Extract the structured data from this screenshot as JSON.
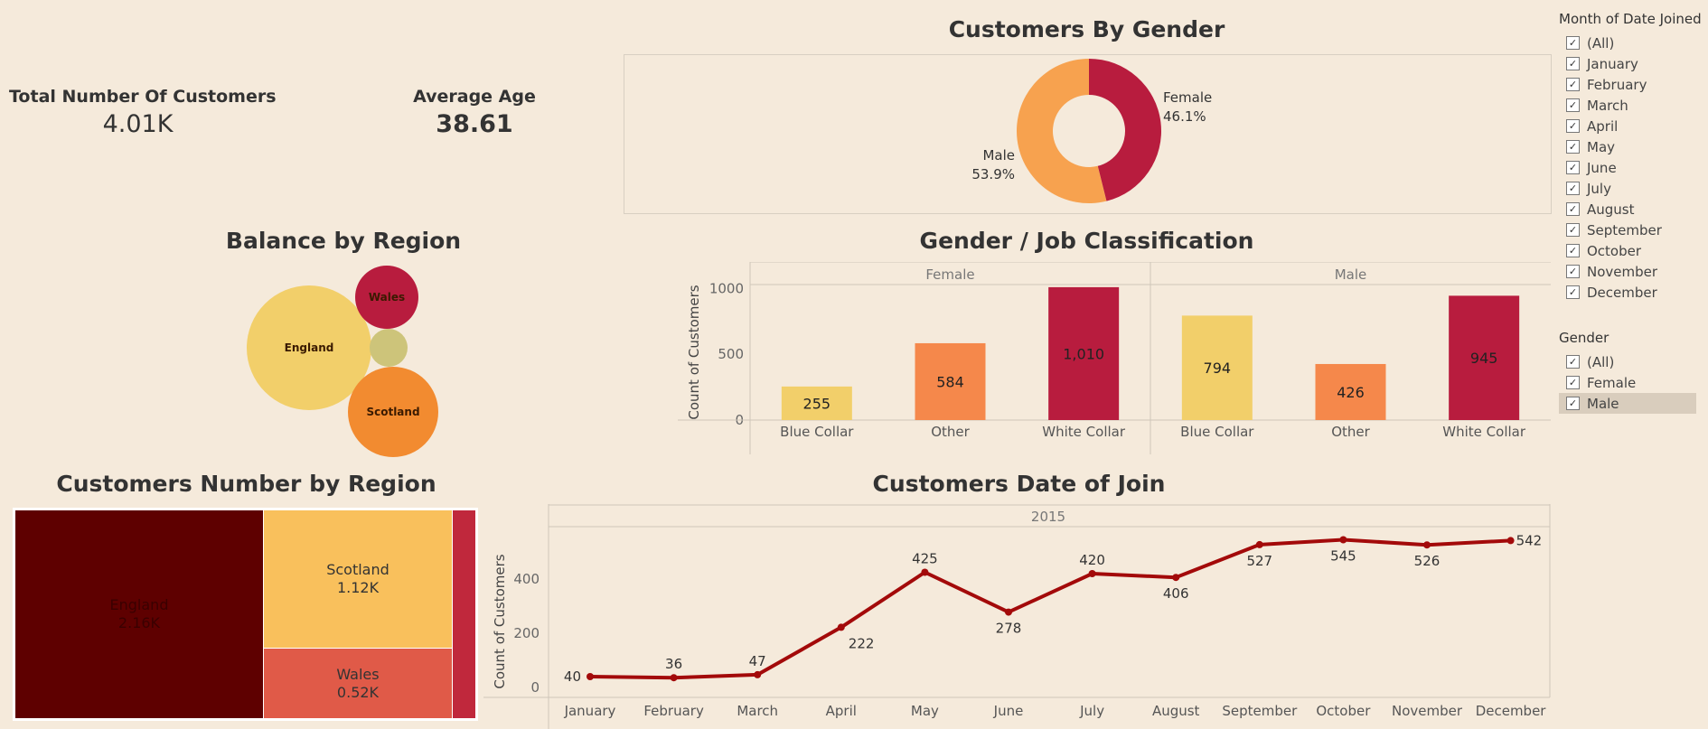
{
  "kpis": {
    "total_customers": {
      "label": "Total Number Of Customers",
      "value": "4.01K"
    },
    "average_age": {
      "label": "Average Age",
      "value": "38.61"
    }
  },
  "titles": {
    "gender": "Customers By Gender",
    "balance": "Balance by Region",
    "job": "Gender / Job Classification",
    "region_count": "Customers Number by Region",
    "date_join": "Customers Date of Join"
  },
  "colors": {
    "background": "#f5eadb",
    "crimson": "#b81c3e",
    "orange": "#f7a24f",
    "light_orange": "#f5884b",
    "yellow": "#f2cf6a",
    "dark_red": "#5e0000",
    "line": "#a30a0a",
    "olive": "#cdc47a"
  },
  "filters": {
    "month": {
      "title": "Month of Date Joined",
      "items": [
        "(All)",
        "January",
        "February",
        "March",
        "April",
        "May",
        "June",
        "July",
        "August",
        "September",
        "October",
        "November",
        "December"
      ]
    },
    "gender": {
      "title": "Gender",
      "items": [
        "(All)",
        "Female",
        "Male"
      ],
      "selected": "Male"
    }
  },
  "chart_data": [
    {
      "type": "pie",
      "title": "Customers By Gender",
      "donut": true,
      "slices": [
        {
          "label": "Female",
          "percent_label": "46.1%",
          "value": 46.1,
          "color": "#b81c3e"
        },
        {
          "label": "Male",
          "percent_label": "53.9%",
          "value": 53.9,
          "color": "#f7a24f"
        }
      ]
    },
    {
      "type": "bubble",
      "title": "Balance by Region",
      "bubbles": [
        {
          "label": "England",
          "color": "#f2cf6a"
        },
        {
          "label": "Wales",
          "color": "#b81c3e"
        },
        {
          "label": "",
          "color": "#cdc47a"
        },
        {
          "label": "Scotland",
          "color": "#f28b30"
        }
      ]
    },
    {
      "type": "bar",
      "title": "Gender / Job Classification",
      "ylabel": "Count of Customers",
      "ylim": [
        0,
        1000
      ],
      "yticks": [
        "0",
        "500",
        "1000"
      ],
      "yticks_values": [
        0,
        500,
        1000
      ],
      "panels": [
        {
          "name": "Female",
          "categories": [
            "Blue Collar",
            "Other",
            "White Collar"
          ],
          "values": [
            255,
            584,
            1010
          ],
          "labels": [
            "255",
            "584",
            "1,010"
          ]
        },
        {
          "name": "Male",
          "categories": [
            "Blue Collar",
            "Other",
            "White Collar"
          ],
          "values": [
            794,
            426,
            945
          ],
          "labels": [
            "794",
            "426",
            "945"
          ]
        }
      ],
      "category_colors": {
        "Blue Collar": "#f2cf6a",
        "Other": "#f5884b",
        "White Collar": "#b81c3e"
      }
    },
    {
      "type": "treemap",
      "title": "Customers Number by Region",
      "items": [
        {
          "name": "England",
          "value_label": "2.16K",
          "value": 2.16,
          "color": "#5e0000"
        },
        {
          "name": "Scotland",
          "value_label": "1.12K",
          "value": 1.12,
          "color": "#f9c05c"
        },
        {
          "name": "Wales",
          "value_label": "0.52K",
          "value": 0.52,
          "color": "#e05a48"
        },
        {
          "name": "",
          "value_label": "",
          "value": 0.21,
          "color": "#c0283c"
        }
      ]
    },
    {
      "type": "line",
      "title": "Customers Date of Join",
      "header": "2015",
      "ylabel": "Count of Customers",
      "ylim": [
        0,
        600
      ],
      "yticks": [
        "0",
        "200",
        "400"
      ],
      "yticks_values": [
        0,
        200,
        400
      ],
      "x": [
        "January",
        "February",
        "March",
        "April",
        "May",
        "June",
        "July",
        "August",
        "September",
        "October",
        "November",
        "December"
      ],
      "values": [
        40,
        36,
        47,
        222,
        425,
        278,
        420,
        406,
        527,
        545,
        526,
        542
      ],
      "labels": [
        "40",
        "36",
        "47",
        "222",
        "425",
        "278",
        "420",
        "406",
        "527",
        "545",
        "526",
        "542"
      ]
    }
  ]
}
